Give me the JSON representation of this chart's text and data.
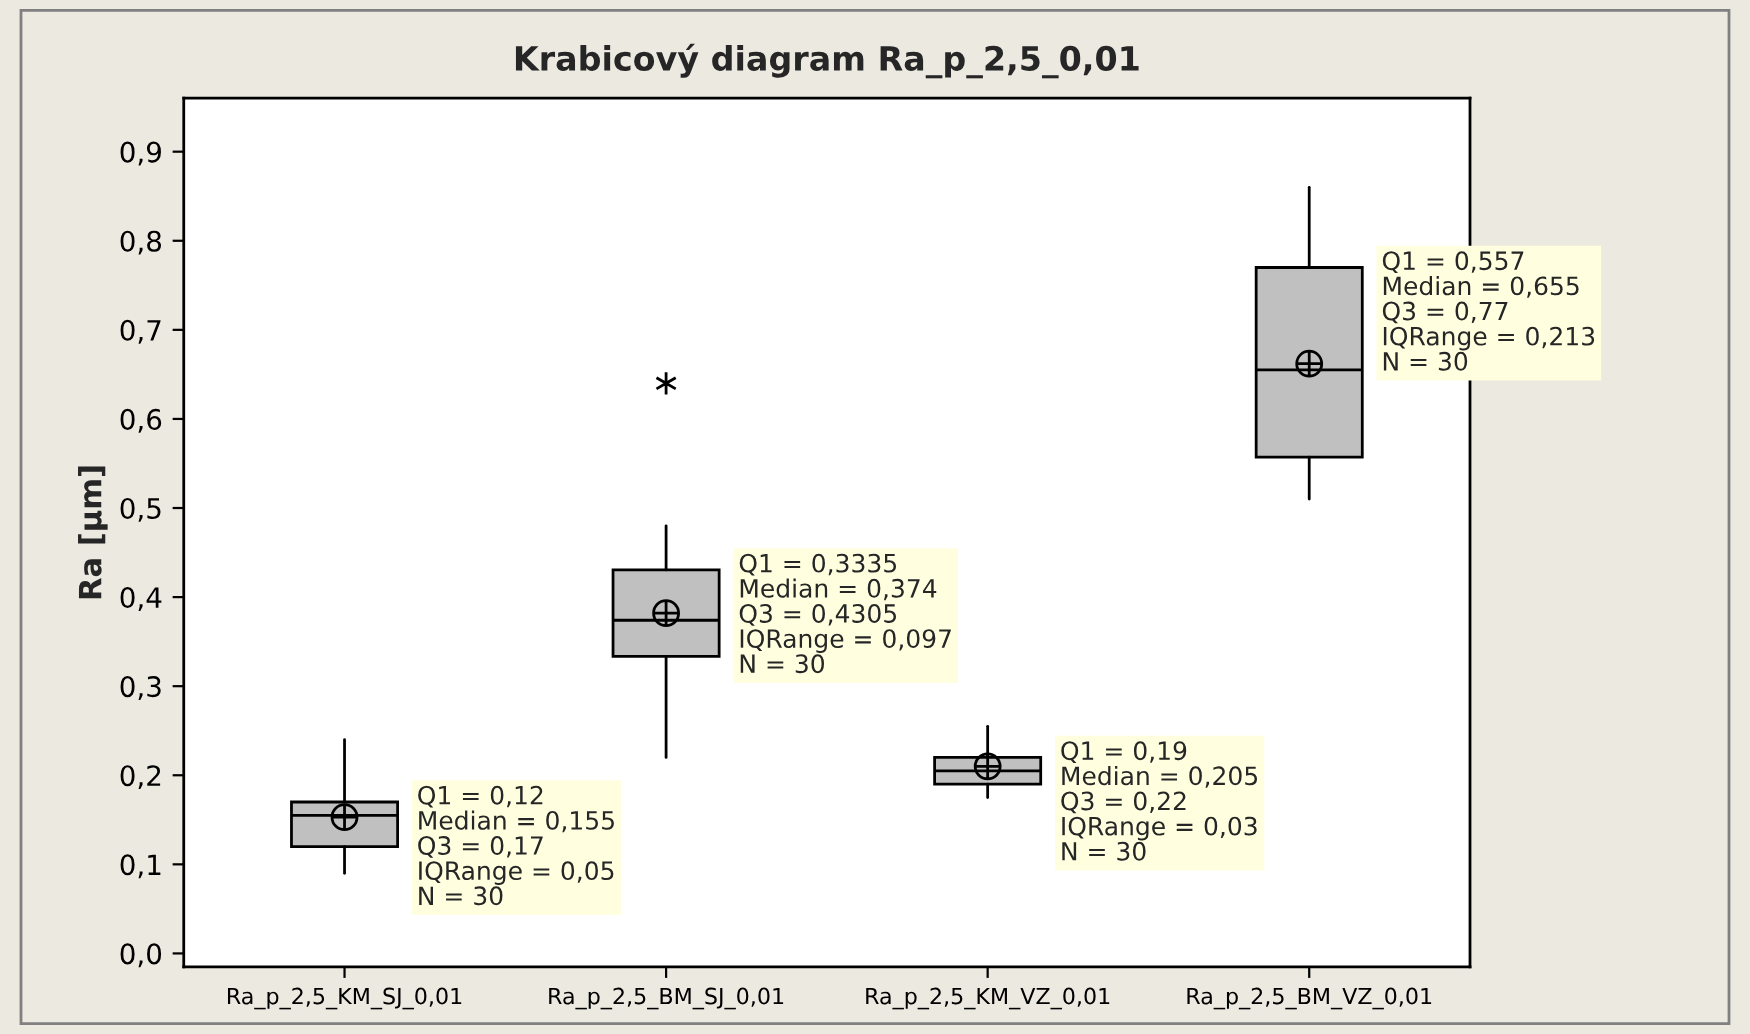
{
  "chart_data": {
    "type": "box",
    "title": "Krabicový diagram Ra_p_2,5_0,01",
    "ylabel": "Ra [µm]",
    "categories": [
      "Ra_p_2,5_KM_SJ_0,01",
      "Ra_p_2,5_BM_SJ_0,01",
      "Ra_p_2,5_KM_VZ_0,01",
      "Ra_p_2,5_BM_VZ_0,01"
    ],
    "color": "#c0c0c0",
    "boxes": [
      {
        "low": 0.09,
        "q1": 0.12,
        "median": 0.155,
        "q3": 0.17,
        "high": 0.24,
        "mean": 0.153
      },
      {
        "low": 0.22,
        "q1": 0.3335,
        "median": 0.374,
        "q3": 0.4305,
        "high": 0.48,
        "mean": 0.382,
        "outliers": [
          0.64
        ]
      },
      {
        "low": 0.175,
        "q1": 0.19,
        "median": 0.205,
        "q3": 0.22,
        "high": 0.255,
        "mean": 0.21
      },
      {
        "low": 0.51,
        "q1": 0.557,
        "median": 0.655,
        "q3": 0.77,
        "high": 0.86,
        "mean": 0.662
      }
    ],
    "ylim": [
      -0.015,
      0.96
    ],
    "yticks": [
      {
        "value": 0.0,
        "label": "0,0"
      },
      {
        "value": 0.1,
        "label": "0,1"
      },
      {
        "value": 0.2,
        "label": "0,2"
      },
      {
        "value": 0.3,
        "label": "0,3"
      },
      {
        "value": 0.4,
        "label": "0,4"
      },
      {
        "value": 0.5,
        "label": "0,5"
      },
      {
        "value": 0.6,
        "label": "0,6"
      },
      {
        "value": 0.7,
        "label": "0,7"
      },
      {
        "value": 0.8,
        "label": "0,8"
      },
      {
        "value": 0.9,
        "label": "0,9"
      }
    ],
    "grid": false,
    "annotations": [
      "Q1 = 0,12\nMedian = 0,155\nQ3 = 0,17\nIQRange = 0,05\nN = 30",
      "Q1 = 0,3335\nMedian = 0,374\nQ3 = 0,4305\nIQRange = 0,097\nN = 30",
      "Q1 = 0,19\nMedian = 0,205\nQ3 = 0,22\nIQRange = 0,03\nN = 30",
      "Q1 = 0,557\nMedian = 0,655\nQ3 = 0,77\nIQRange = 0,213\nN = 30"
    ]
  }
}
